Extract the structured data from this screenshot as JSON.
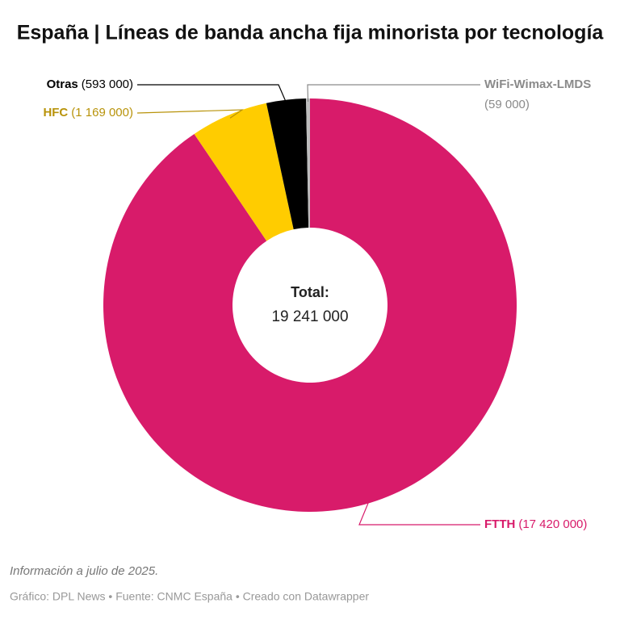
{
  "chart_data": {
    "type": "donut",
    "title": "España | Líneas de banda ancha fija minorista por tecnología",
    "categories": [
      "FTTH",
      "HFC",
      "Otras",
      "WiFi-Wimax-LMDS"
    ],
    "values": [
      17420000,
      1169000,
      593000,
      59000
    ],
    "value_labels": [
      "(17 420 000)",
      "(1 169 000)",
      "(593 000)",
      "(59 000)"
    ],
    "colors": [
      "#d81b6a",
      "#ffcc00",
      "#000000",
      "#bdbdbd"
    ],
    "label_colors": [
      "#d81b6a",
      "#b8930a",
      "#000000",
      "#8a8a8a"
    ],
    "center_title": "Total:",
    "center_value": "19 241 000",
    "note": "Información a julio de 2025.",
    "footer": "Gráfico: DPL News • Fuente: CNMC España • Creado con Datawrapper"
  }
}
